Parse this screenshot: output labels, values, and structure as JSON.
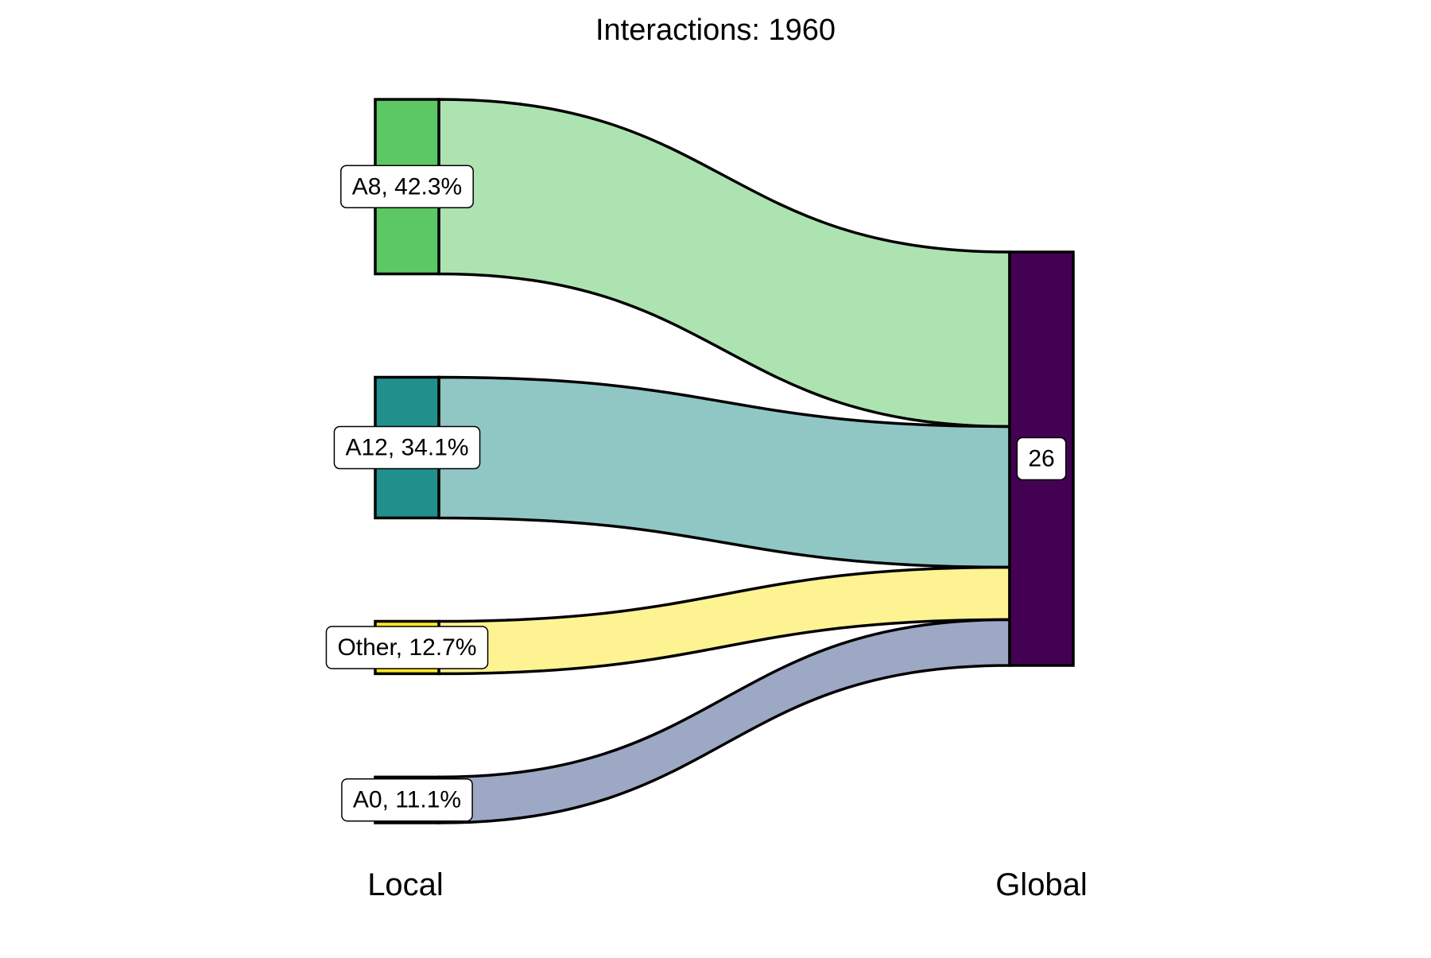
{
  "chart_data": {
    "type": "sankey",
    "title": "Interactions: 1960",
    "axes": [
      "Local",
      "Global"
    ],
    "flow_color_opacity": 0.5,
    "sources": [
      {
        "name": "A8",
        "share_pct": 42.3,
        "label": "A8, 42.3%",
        "color": "#5CC863"
      },
      {
        "name": "A12",
        "share_pct": 34.1,
        "label": "A12, 34.1%",
        "color": "#21908C"
      },
      {
        "name": "Other",
        "share_pct": 12.7,
        "label": "Other, 12.7%",
        "color": "#FDE725"
      },
      {
        "name": "A0",
        "share_pct": 11.1,
        "label": "A0, 11.1%",
        "color": "#3B528B"
      }
    ],
    "target": {
      "name": "26",
      "label": "26",
      "color": "#440154"
    },
    "flows": [
      {
        "from": "A8",
        "to": "26",
        "value": 42.3
      },
      {
        "from": "A12",
        "to": "26",
        "value": 34.1
      },
      {
        "from": "Other",
        "to": "26",
        "value": 12.7
      },
      {
        "from": "A0",
        "to": "26",
        "value": 11.1
      }
    ]
  }
}
